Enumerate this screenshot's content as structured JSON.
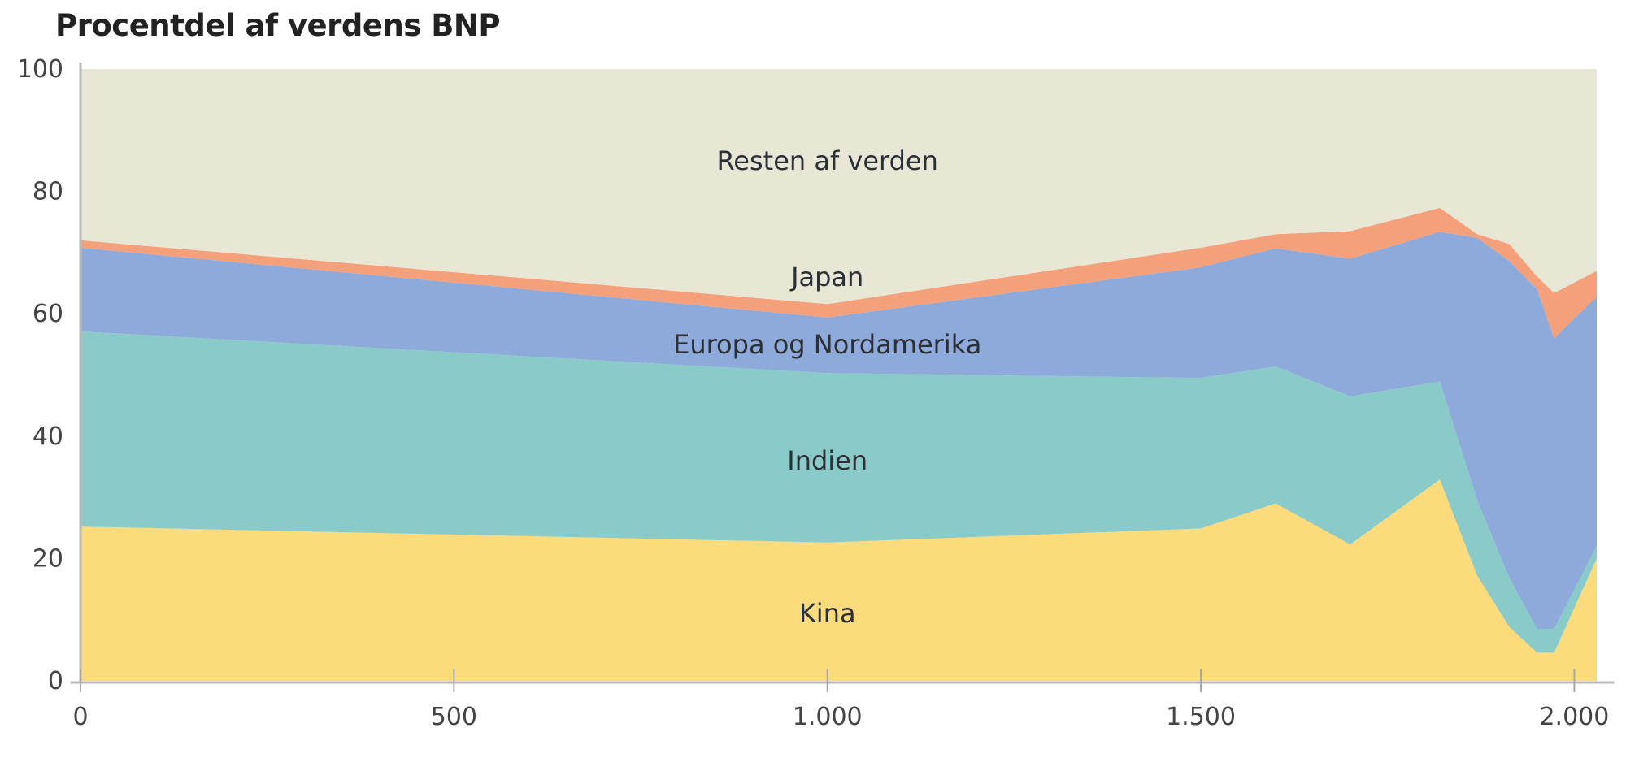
{
  "chart_data": {
    "type": "area",
    "stacked": true,
    "title": "Procentdel af verdens BNP",
    "xlabel": "",
    "ylabel": "",
    "x": [
      1,
      1000,
      1500,
      1600,
      1700,
      1820,
      1870,
      1913,
      1950,
      1973,
      2030
    ],
    "xlim": [
      0,
      2060
    ],
    "ylim": [
      0,
      100
    ],
    "x_ticks": [
      0,
      500,
      1000,
      1500,
      2000
    ],
    "x_tick_labels": [
      "0",
      "500",
      "1.000",
      "1.500",
      "2.000"
    ],
    "y_ticks": [
      0,
      20,
      40,
      60,
      80,
      100
    ],
    "y_tick_labels": [
      "0",
      "20",
      "40",
      "60",
      "80",
      "100"
    ],
    "grid": false,
    "legend_position": "inline labels",
    "series": [
      {
        "name": "Kina",
        "color": "#fcdb7c",
        "values": [
          25.2,
          22.6,
          24.9,
          29.0,
          22.3,
          32.9,
          17.2,
          8.8,
          4.6,
          4.6,
          20.0
        ]
      },
      {
        "name": "Indien",
        "color": "#8acbc9",
        "values": [
          31.9,
          27.7,
          24.6,
          22.4,
          24.2,
          16.0,
          12.3,
          8.0,
          3.9,
          3.9,
          2.0
        ]
      },
      {
        "name": "Europa og Nordamerika",
        "color": "#8eaadb",
        "values": [
          13.7,
          9.1,
          18.1,
          19.3,
          22.5,
          24.5,
          42.9,
          51.8,
          55.5,
          47.5,
          40.8
        ]
      },
      {
        "name": "Japan",
        "color": "#f4a07a",
        "values": [
          1.2,
          2.2,
          3.2,
          2.3,
          4.5,
          3.9,
          0.6,
          2.8,
          2.1,
          7.4,
          4.2
        ]
      },
      {
        "name": "Resten af verden",
        "color": "#e8e7d6",
        "values": [
          28.0,
          38.4,
          29.2,
          27.0,
          26.5,
          22.7,
          27.0,
          28.6,
          33.9,
          36.6,
          33.0
        ]
      }
    ],
    "annotations": [
      {
        "text": "Resten af verden",
        "x": 1000,
        "y": 85
      },
      {
        "text": "Japan",
        "x": 1000,
        "y": 66
      },
      {
        "text": "Europa og Nordamerika",
        "x": 1000,
        "y": 55
      },
      {
        "text": "Indien",
        "x": 1000,
        "y": 36
      },
      {
        "text": "Kina",
        "x": 1000,
        "y": 11
      }
    ]
  }
}
